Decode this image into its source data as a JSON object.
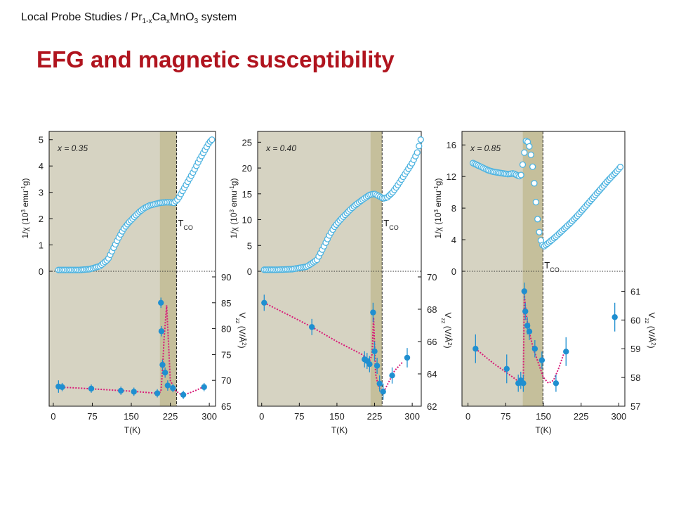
{
  "header": {
    "breadcrumb_prefix": "Local Probe Studies / Pr",
    "breadcrumb_sub1": "1-x",
    "breadcrumb_mid1": "Ca",
    "breadcrumb_sub2": "x",
    "breadcrumb_mid2": "MnO",
    "breadcrumb_sub3": "3",
    "breadcrumb_suffix": " system",
    "title": "EFG and magnetic susceptibility"
  },
  "colors": {
    "title": "#b0141e",
    "ordered_region": "#d6d3c2",
    "transition_band": "#c5bf9b",
    "susceptibility_marker": "#4db3e0",
    "efg_marker": "#1f8fd0",
    "efg_fit": "#d81b78"
  },
  "chart_data": [
    {
      "type": "scatter",
      "panel_label": "x = 0.35",
      "xlabel": "T(K)",
      "xticks": [
        0,
        75,
        150,
        225,
        300
      ],
      "xlim": [
        -8,
        312
      ],
      "ordered_region": [
        -8,
        237
      ],
      "transition_band": [
        205,
        237
      ],
      "tco_T": 237,
      "tco_label": "T",
      "tco_sub": "CO",
      "top": {
        "ylabel_text": "1/χ (10",
        "ylabel_sup": "3",
        "ylabel_rest": " emu",
        "ylabel_sup2": "-1",
        "ylabel_end": "g)",
        "ylim": [
          0,
          5.1
        ],
        "yticks": [
          0,
          1,
          2,
          3,
          4,
          5
        ],
        "series": [
          {
            "x": [
              10,
              30,
              50,
              70,
              90,
              105,
              115,
              125,
              135,
              145,
              155,
              165,
              175,
              185,
              195,
              205,
              215,
              225,
              232,
              240,
              250,
              260,
              270,
              280,
              290,
              300,
              305
            ],
            "y": [
              0.05,
              0.05,
              0.05,
              0.08,
              0.2,
              0.45,
              0.85,
              1.25,
              1.6,
              1.85,
              2.05,
              2.25,
              2.4,
              2.5,
              2.55,
              2.6,
              2.62,
              2.62,
              2.6,
              2.75,
              3.1,
              3.45,
              3.8,
              4.2,
              4.55,
              4.9,
              5.0
            ]
          }
        ]
      },
      "bottom": {
        "ylabel_text": "V",
        "ylabel_sub": "zz",
        "ylabel_rest": " (V/Å",
        "ylabel_sup": "2",
        "ylabel_end": ")",
        "ylim": [
          65,
          90
        ],
        "yticks": [
          65,
          70,
          75,
          80,
          85,
          90
        ],
        "points": [
          {
            "x": 10,
            "y": 68.8,
            "err": 1.2
          },
          {
            "x": 17,
            "y": 68.7,
            "err": 0.8
          },
          {
            "x": 73,
            "y": 68.4,
            "err": 0.8
          },
          {
            "x": 130,
            "y": 68.0,
            "err": 0.8
          },
          {
            "x": 155,
            "y": 67.8,
            "err": 0.8
          },
          {
            "x": 200,
            "y": 67.5,
            "err": 0.8
          },
          {
            "x": 207,
            "y": 85.0,
            "err": 1.0
          },
          {
            "x": 208,
            "y": 79.5,
            "err": 1.0
          },
          {
            "x": 210,
            "y": 73.0,
            "err": 1.0
          },
          {
            "x": 215,
            "y": 71.5,
            "err": 1.0
          },
          {
            "x": 220,
            "y": 69.0,
            "err": 1.0
          },
          {
            "x": 230,
            "y": 68.5,
            "err": 0.8
          },
          {
            "x": 250,
            "y": 67.2,
            "err": 0.8
          },
          {
            "x": 290,
            "y": 68.7,
            "err": 0.8
          }
        ],
        "fit": {
          "x": [
            10,
            50,
            100,
            150,
            200,
            207,
            210,
            213,
            218,
            225,
            235,
            245,
            252,
            260,
            275,
            290
          ],
          "y": [
            68.7,
            68.5,
            68.2,
            67.9,
            67.5,
            67.8,
            72.0,
            78.0,
            84.5,
            70.0,
            68.0,
            67.3,
            67.2,
            67.5,
            68.1,
            68.8
          ]
        }
      }
    },
    {
      "type": "scatter",
      "panel_label": "x = 0.40",
      "xlabel": "T(K)",
      "xticks": [
        0,
        75,
        150,
        225,
        300
      ],
      "xlim": [
        -8,
        318
      ],
      "ordered_region": [
        -8,
        240
      ],
      "transition_band": [
        217,
        240
      ],
      "tco_T": 240,
      "tco_label": "T",
      "tco_sub": "CO",
      "top": {
        "ylabel_text": "1/χ (10",
        "ylabel_sup": "3",
        "ylabel_rest": " emu",
        "ylabel_sup2": "-1",
        "ylabel_end": "g)",
        "ylim": [
          0,
          26
        ],
        "yticks": [
          0,
          5,
          10,
          15,
          20,
          25
        ],
        "series": [
          {
            "x": [
              5,
              30,
              60,
              90,
              110,
              125,
              135,
              145,
              155,
              165,
              175,
              185,
              200,
              215,
              225,
              235,
              242,
              250,
              260,
              270,
              280,
              290,
              300,
              310,
              317
            ],
            "y": [
              0.3,
              0.3,
              0.4,
              0.9,
              2.2,
              5.0,
              7.0,
              8.6,
              9.8,
              10.8,
              11.8,
              12.7,
              13.8,
              14.8,
              15.0,
              14.5,
              14.1,
              14.3,
              15.2,
              16.5,
              18.0,
              19.5,
              21.0,
              23.0,
              25.5
            ]
          }
        ]
      },
      "bottom": {
        "ylabel_text": "V",
        "ylabel_sub": "zz",
        "ylabel_rest": " (V/Å",
        "ylabel_sup": "2",
        "ylabel_end": ")",
        "ylim": [
          62,
          70
        ],
        "yticks": [
          62,
          64,
          66,
          68,
          70
        ],
        "points": [
          {
            "x": 5,
            "y": 68.4,
            "err": 0.5
          },
          {
            "x": 100,
            "y": 66.9,
            "err": 0.5
          },
          {
            "x": 205,
            "y": 64.9,
            "err": 0.5
          },
          {
            "x": 210,
            "y": 64.8,
            "err": 0.5
          },
          {
            "x": 215,
            "y": 64.6,
            "err": 0.5
          },
          {
            "x": 222,
            "y": 67.8,
            "err": 0.6
          },
          {
            "x": 225,
            "y": 65.4,
            "err": 0.6
          },
          {
            "x": 230,
            "y": 64.5,
            "err": 0.5
          },
          {
            "x": 235,
            "y": 63.4,
            "err": 0.5
          },
          {
            "x": 242,
            "y": 62.9,
            "err": 0.5
          },
          {
            "x": 260,
            "y": 63.9,
            "err": 0.5
          },
          {
            "x": 290,
            "y": 65.0,
            "err": 0.6
          }
        ],
        "fit": {
          "x": [
            5,
            50,
            100,
            150,
            200,
            215,
            220,
            223,
            227,
            232,
            238,
            245,
            255,
            265,
            280
          ],
          "y": [
            68.4,
            67.7,
            66.9,
            66.0,
            65.2,
            64.8,
            65.2,
            67.5,
            64.0,
            63.3,
            62.9,
            63.0,
            63.6,
            64.2,
            64.7
          ]
        }
      }
    },
    {
      "type": "scatter",
      "panel_label": "x = 0.85",
      "xlabel": "T(K)",
      "xticks": [
        0,
        75,
        150,
        225,
        300
      ],
      "xlim": [
        -12,
        312
      ],
      "ordered_region": [
        -12,
        149
      ],
      "transition_band": [
        109,
        149
      ],
      "tco_T": 149,
      "tco_label": "T",
      "tco_sub": "CO",
      "top": {
        "ylabel_text": "1/χ (10",
        "ylabel_sup": "3",
        "ylabel_rest": " emu",
        "ylabel_sup2": "-1",
        "ylabel_end": "g)",
        "ylim": [
          0,
          17
        ],
        "yticks": [
          0,
          4,
          8,
          12,
          16
        ],
        "series": [
          {
            "x": [
              10,
              20,
              30,
              40,
              50,
              60,
              70,
              80,
              90,
              100,
              105,
              110,
              115,
              118,
              122,
              126,
              130,
              134,
              138,
              142,
              146,
              150,
              160,
              175,
              190,
              205,
              220,
              235,
              250,
              265,
              280,
              295,
              303
            ],
            "y": [
              13.7,
              13.4,
              13.1,
              12.8,
              12.6,
              12.5,
              12.4,
              12.3,
              12.4,
              12.1,
              12.0,
              14.0,
              16.5,
              16.5,
              15.8,
              14.5,
              12.5,
              9.5,
              6.8,
              4.8,
              3.6,
              3.1,
              3.6,
              4.4,
              5.3,
              6.2,
              7.2,
              8.3,
              9.4,
              10.5,
              11.6,
              12.6,
              13.2
            ]
          }
        ]
      },
      "bottom": {
        "ylabel_text": "V",
        "ylabel_sub": "zz",
        "ylabel_rest": " (V/Å",
        "ylabel_sup": "2",
        "ylabel_end": ")",
        "ylim": [
          57,
          61.5
        ],
        "yticks": [
          57,
          58,
          59,
          60,
          61
        ],
        "points": [
          {
            "x": 15,
            "y": 59.0,
            "err": 0.5
          },
          {
            "x": 77,
            "y": 58.3,
            "err": 0.5
          },
          {
            "x": 100,
            "y": 57.8,
            "err": 0.3
          },
          {
            "x": 105,
            "y": 57.9,
            "err": 0.3
          },
          {
            "x": 110,
            "y": 57.8,
            "err": 0.3
          },
          {
            "x": 112,
            "y": 61.0,
            "err": 0.3
          },
          {
            "x": 114,
            "y": 60.3,
            "err": 0.3
          },
          {
            "x": 118,
            "y": 59.8,
            "err": 0.3
          },
          {
            "x": 122,
            "y": 59.6,
            "err": 0.3
          },
          {
            "x": 133,
            "y": 59.0,
            "err": 0.3
          },
          {
            "x": 147,
            "y": 58.6,
            "err": 0.3
          },
          {
            "x": 175,
            "y": 57.8,
            "err": 0.3
          },
          {
            "x": 195,
            "y": 58.9,
            "err": 0.5
          },
          {
            "x": 292,
            "y": 60.1,
            "err": 0.5
          }
        ],
        "fit": {
          "x": [
            15,
            50,
            90,
            105,
            110,
            112,
            115,
            120,
            130,
            140,
            150,
            160,
            170,
            180,
            190,
            195
          ],
          "y": [
            59.0,
            58.5,
            58.0,
            57.8,
            57.9,
            60.9,
            60.3,
            59.7,
            59.0,
            58.5,
            58.0,
            57.8,
            57.9,
            58.3,
            58.8,
            59.0
          ]
        }
      }
    }
  ]
}
